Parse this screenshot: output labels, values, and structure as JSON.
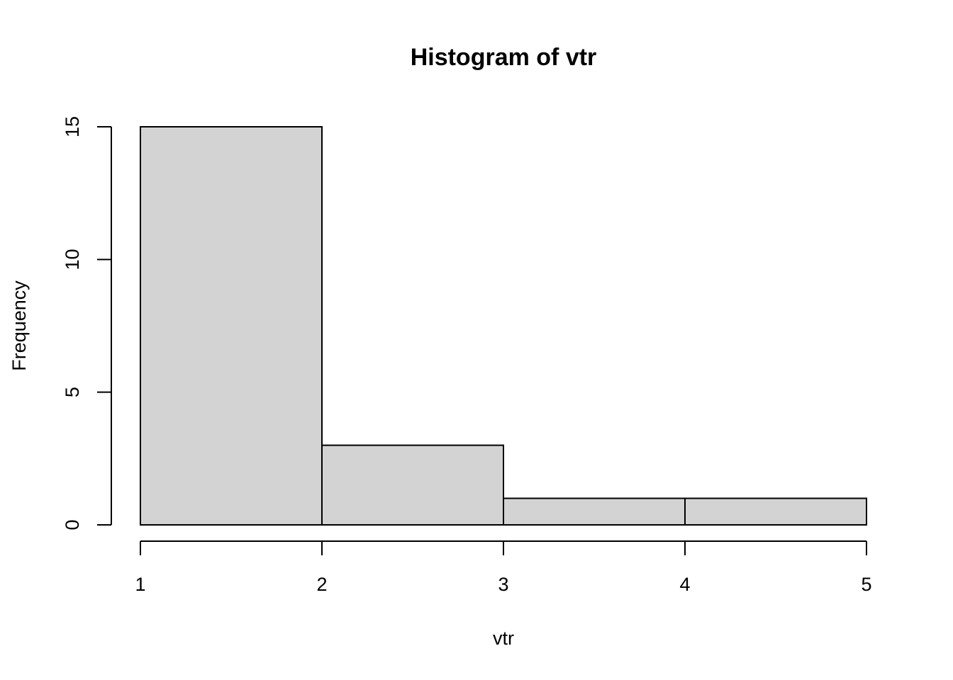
{
  "chart_data": {
    "type": "bar",
    "title": "Histogram of vtr",
    "xlabel": "vtr",
    "ylabel": "Frequency",
    "bins": [
      {
        "start": 1,
        "end": 2,
        "count": 15
      },
      {
        "start": 2,
        "end": 3,
        "count": 3
      },
      {
        "start": 3,
        "end": 4,
        "count": 1
      },
      {
        "start": 4,
        "end": 5,
        "count": 1
      }
    ],
    "xlim": [
      1,
      5
    ],
    "ylim": [
      0,
      15
    ],
    "x_ticks": [
      "1",
      "2",
      "3",
      "4",
      "5"
    ],
    "y_ticks": [
      "0",
      "5",
      "10",
      "15"
    ],
    "bar_color": "#d3d3d3",
    "grid": false,
    "legend": "none"
  }
}
